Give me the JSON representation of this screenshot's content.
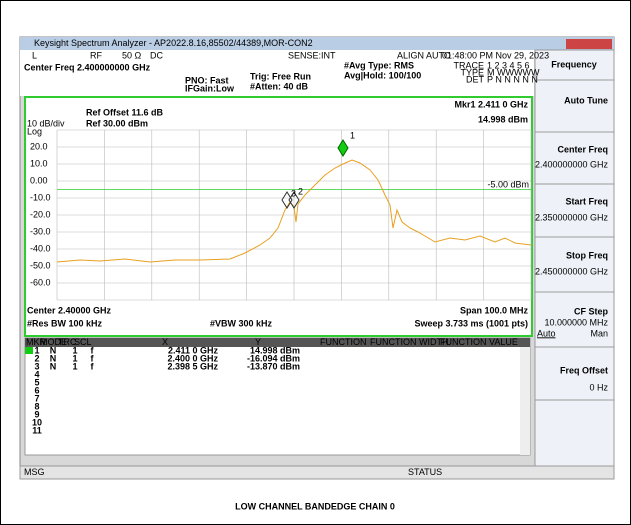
{
  "window_title": "Keysight Spectrum Analyzer - AP2022.8.16,85502/44389,MOR-CON2",
  "status_bar": {
    "mode": "L",
    "input": "RF",
    "impedance": "50 Ω",
    "coupling": "DC",
    "sense": "SENSE:INT",
    "align": "ALIGN AUTO",
    "datetime": "01:48:00 PM Nov 29, 2023"
  },
  "header": {
    "center_freq": "Center Freq 2.400000000 GHz",
    "pno": "PNO: Fast",
    "ifgain": "IFGain:Low",
    "trig": "Trig: Free Run",
    "atten": "#Atten: 40 dB",
    "avg_type": "#Avg Type: RMS",
    "avg_hold": "Avg|Hold: 100/100",
    "trace_label": "TRACE",
    "trace_nums": "1 2 3 4 5 6",
    "type_label": "TYPE",
    "type_vals": "M WWWWW",
    "det_label": "DET",
    "det_vals": "P N N N N N"
  },
  "plot": {
    "ref_offset": "Ref Offset 11.6 dB",
    "scale": "10 dB/div",
    "ref_level": "Ref 30.00 dBm",
    "log": "Log",
    "marker_freq": "Mkr1 2.411 0 GHz",
    "marker_level": "14.998 dBm",
    "line_label": "-5.00 dBm",
    "y_labels": [
      "20.0",
      "10.0",
      "0.00",
      "-10.0",
      "-20.0",
      "-30.0",
      "-40.0",
      "-50.0",
      "-60.0"
    ],
    "marker_tags": [
      "1",
      "2",
      "3"
    ],
    "center": "Center 2.40000 GHz",
    "span": "Span 100.0 MHz",
    "rbw": "#Res BW 100 kHz",
    "vbw": "#VBW 300 kHz",
    "sweep": "Sweep  3.733 ms (1001 pts)"
  },
  "softkeys": {
    "menu": "Frequency",
    "auto_tune": "Auto Tune",
    "center_label": "Center Freq",
    "center_value": "2.400000000 GHz",
    "start_label": "Start Freq",
    "start_value": "2.350000000 GHz",
    "stop_label": "Stop Freq",
    "stop_value": "2.450000000 GHz",
    "cfstep_label": "CF Step",
    "cfstep_value": "10.000000 MHz",
    "auto": "Auto",
    "man": "Man",
    "offset_label": "Freq Offset",
    "offset_value": "0 Hz"
  },
  "marker_table": {
    "headers": [
      "MKR",
      "MODE",
      "TRC",
      "SCL",
      "X",
      "Y",
      "FUNCTION",
      "FUNCTION WIDTH",
      "FUNCTION VALUE"
    ],
    "rows": [
      [
        "1",
        "N",
        "1",
        "f",
        "2.411 0 GHz",
        "14.998 dBm"
      ],
      [
        "2",
        "N",
        "1",
        "f",
        "2.400 0 GHz",
        "-16.094 dBm"
      ],
      [
        "3",
        "N",
        "1",
        "f",
        "2.398 5 GHz",
        "-13.870 dBm"
      ]
    ],
    "empty_rows": [
      "4",
      "5",
      "6",
      "7",
      "8",
      "9",
      "10",
      "11"
    ]
  },
  "footer": {
    "msg": "MSG",
    "status": "STATUS"
  },
  "caption": "LOW CHANNEL BANDEDGE CHAIN 0"
}
